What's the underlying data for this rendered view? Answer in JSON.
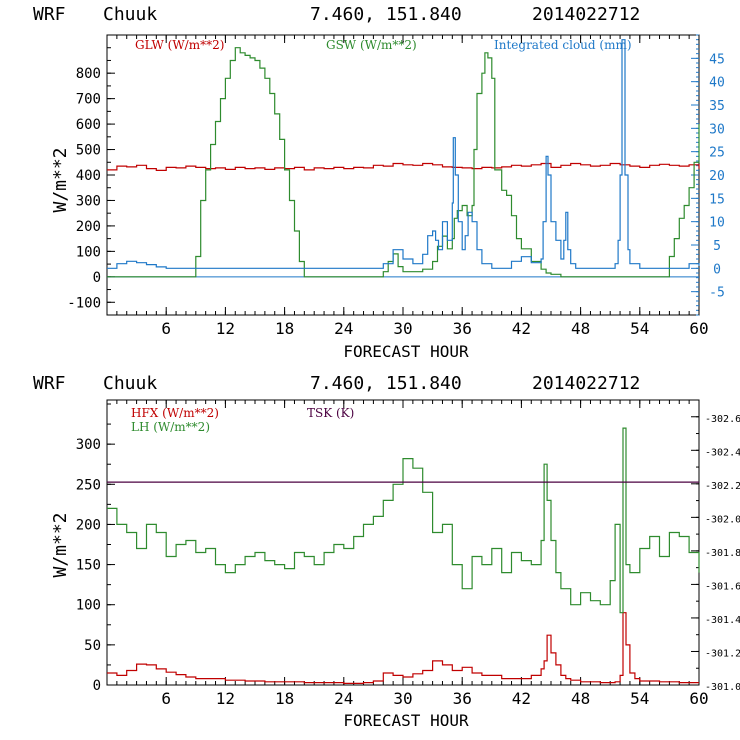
{
  "colors": {
    "glw": "#c00000",
    "gsw": "#2e8b2e",
    "cloud": "#1e78c8",
    "hfx": "#c00000",
    "lh": "#2e8b2e",
    "tsk": "#4b0040",
    "axis": "#000000",
    "right_axis_top": "#1e78c8"
  },
  "chart_data": [
    {
      "type": "line",
      "header": {
        "model": "WRF",
        "site": "Chuuk",
        "coords": "7.460, 151.840",
        "run": "2014022712"
      },
      "title": "WRF  Chuuk   7.460, 151.840  2014022712",
      "xlabel": "FORECAST HOUR",
      "ylabel": "W/m**2",
      "xlim": [
        0,
        60
      ],
      "xticks": [
        6,
        12,
        18,
        24,
        30,
        36,
        42,
        48,
        54,
        60
      ],
      "xtick_labels": [
        "6",
        "12",
        "18",
        "24",
        "30",
        "36",
        "42",
        "48",
        "54",
        "60"
      ],
      "ylim": [
        -150,
        950
      ],
      "yticks": [
        -100,
        0,
        100,
        200,
        300,
        400,
        500,
        600,
        700,
        800
      ],
      "ytick_labels": [
        "-100",
        "0",
        "100",
        "200",
        "300",
        "400",
        "500",
        "600",
        "700",
        "800"
      ],
      "y2lim": [
        -10,
        50
      ],
      "y2ticks": [
        -5,
        0,
        5,
        10,
        15,
        20,
        25,
        30,
        35,
        40,
        45
      ],
      "y2tick_labels": [
        "-5",
        "0",
        "5",
        "10",
        "15",
        "20",
        "25",
        "30",
        "35",
        "40",
        "45"
      ],
      "legend": {
        "glw": "GLW (W/m**2)",
        "gsw": "GSW (W/m**2)",
        "cloud": "Integrated cloud (mm)"
      },
      "series": [
        {
          "name": "GLW (W/m**2)",
          "axis": "left",
          "color_key": "glw",
          "x": [
            0,
            1,
            2,
            3,
            4,
            5,
            6,
            7,
            8,
            9,
            10,
            11,
            12,
            13,
            14,
            15,
            16,
            17,
            18,
            19,
            20,
            21,
            22,
            23,
            24,
            25,
            26,
            27,
            28,
            29,
            30,
            31,
            32,
            33,
            34,
            35,
            36,
            37,
            38,
            39,
            40,
            41,
            42,
            43,
            44,
            45,
            46,
            47,
            48,
            49,
            50,
            51,
            52,
            53,
            54,
            55,
            56,
            57,
            58,
            59,
            60
          ],
          "y": [
            420,
            435,
            432,
            438,
            425,
            418,
            430,
            428,
            435,
            430,
            425,
            428,
            422,
            430,
            425,
            428,
            422,
            428,
            425,
            430,
            420,
            428,
            425,
            430,
            425,
            430,
            428,
            438,
            435,
            445,
            440,
            438,
            445,
            440,
            432,
            430,
            428,
            425,
            430,
            428,
            432,
            438,
            435,
            440,
            445,
            430,
            438,
            445,
            440,
            435,
            438,
            445,
            440,
            435,
            430,
            438,
            442,
            438,
            435,
            440,
            425
          ]
        },
        {
          "name": "GSW (W/m**2)",
          "axis": "left",
          "color_key": "gsw",
          "x": [
            0,
            8,
            9,
            9.5,
            10,
            10.5,
            11,
            11.5,
            12,
            12.5,
            13,
            13.5,
            14,
            14.5,
            15,
            15.5,
            16,
            16.5,
            17,
            17.5,
            18,
            18.5,
            19,
            19.5,
            20,
            20.5,
            27,
            28,
            28.5,
            29,
            29.5,
            30,
            32,
            33,
            33.5,
            34,
            34.5,
            35,
            35.2,
            35.5,
            36,
            36.5,
            37,
            37.2,
            37.5,
            38,
            38.3,
            38.6,
            39,
            39.3,
            40,
            40.5,
            41,
            41.5,
            42,
            43,
            44,
            44.5,
            45,
            46,
            47,
            48,
            50,
            52,
            54,
            55,
            56,
            57,
            57.5,
            58,
            58.5,
            59,
            59.5,
            60
          ],
          "y": [
            0,
            0,
            80,
            300,
            420,
            520,
            610,
            700,
            780,
            850,
            900,
            880,
            870,
            860,
            850,
            820,
            780,
            720,
            640,
            540,
            420,
            300,
            180,
            60,
            0,
            0,
            0,
            20,
            60,
            90,
            40,
            20,
            30,
            60,
            120,
            160,
            110,
            150,
            230,
            260,
            280,
            240,
            280,
            500,
            720,
            800,
            880,
            860,
            780,
            420,
            340,
            320,
            240,
            150,
            110,
            60,
            30,
            15,
            10,
            0,
            0,
            0,
            0,
            0,
            0,
            0,
            0,
            80,
            150,
            230,
            280,
            350,
            450,
            600
          ]
        },
        {
          "name": "Integrated cloud (mm)",
          "axis": "right",
          "color_key": "cloud",
          "x": [
            0,
            1,
            2,
            3,
            4,
            5,
            6,
            7,
            8,
            10,
            12,
            14,
            16,
            18,
            20,
            22,
            24,
            26,
            27.5,
            28,
            29,
            30,
            31,
            32,
            32.5,
            33,
            33.3,
            33.6,
            34,
            34.5,
            35,
            35.1,
            35.3,
            35.6,
            36,
            36.3,
            36.6,
            37,
            37.5,
            38,
            39,
            40,
            41,
            42,
            43,
            44,
            44.2,
            44.5,
            44.7,
            45,
            45.5,
            46,
            46.3,
            46.5,
            46.7,
            47,
            47.5,
            48,
            49,
            50,
            51,
            51.5,
            51.8,
            52,
            52.2,
            52.5,
            52.8,
            53,
            54,
            56,
            58,
            59,
            60
          ],
          "y": [
            0,
            1,
            1.5,
            1.2,
            0.8,
            0.3,
            0,
            0,
            0,
            0,
            0,
            0,
            0,
            0,
            0,
            0,
            0,
            0,
            0,
            1,
            4,
            2,
            1,
            3,
            7,
            8,
            6,
            4,
            10,
            6,
            14,
            28,
            20,
            10,
            4,
            7,
            12,
            10,
            4,
            1,
            0,
            0,
            1.5,
            2.5,
            1.2,
            2,
            10,
            24,
            20,
            10,
            6,
            2,
            6,
            12,
            4,
            1,
            0,
            0,
            0,
            0,
            0,
            1,
            6,
            20,
            49,
            20,
            4,
            1,
            0,
            0,
            0,
            1,
            0.5
          ]
        }
      ]
    },
    {
      "type": "line",
      "header": {
        "model": "WRF",
        "site": "Chuuk",
        "coords": "7.460, 151.840",
        "run": "2014022712"
      },
      "title": "WRF  Chuuk   7.460, 151.840  2014022712",
      "xlabel": "FORECAST HOUR",
      "ylabel": "W/m**2",
      "xlim": [
        0,
        60
      ],
      "xticks": [
        6,
        12,
        18,
        24,
        30,
        36,
        42,
        48,
        54,
        60
      ],
      "xtick_labels": [
        "6",
        "12",
        "18",
        "24",
        "30",
        "36",
        "42",
        "48",
        "54",
        "60"
      ],
      "ylim": [
        0,
        355
      ],
      "yticks": [
        0,
        50,
        100,
        150,
        200,
        250,
        300
      ],
      "ytick_labels": [
        "0",
        "50",
        "100",
        "150",
        "200",
        "250",
        "300"
      ],
      "y2lim": [
        301.0,
        302.7
      ],
      "y2ticks": [
        301.0,
        301.2,
        301.4,
        301.6,
        301.8,
        302.0,
        302.2,
        302.4,
        302.6
      ],
      "y2tick_labels": [
        "301.0",
        "301.2",
        "301.4",
        "301.6",
        "301.8",
        "302.0",
        "302.2",
        "302.4",
        "302.6"
      ],
      "legend": {
        "hfx": "HFX (W/m**2)",
        "lh": "LH  (W/m**2)",
        "tsk": "TSK (K)"
      },
      "series": [
        {
          "name": "HFX (W/m**2)",
          "axis": "left",
          "color_key": "hfx",
          "x": [
            0,
            1,
            2,
            3,
            4,
            5,
            6,
            7,
            8,
            9,
            10,
            12,
            14,
            16,
            18,
            20,
            22,
            24,
            26,
            27,
            28,
            29,
            30,
            31,
            32,
            33,
            34,
            35,
            36,
            37,
            38,
            40,
            42,
            43,
            44,
            44.3,
            44.6,
            45,
            45.5,
            46,
            46.5,
            47,
            48,
            50,
            51,
            51.5,
            52,
            52.3,
            52.6,
            53,
            53.5,
            54,
            56,
            58,
            60
          ],
          "y": [
            15,
            12,
            18,
            26,
            25,
            20,
            16,
            13,
            10,
            8,
            8,
            6,
            5,
            4,
            4,
            3,
            3,
            2,
            3,
            5,
            15,
            12,
            10,
            14,
            18,
            30,
            25,
            18,
            22,
            15,
            12,
            8,
            8,
            12,
            20,
            30,
            62,
            40,
            25,
            12,
            8,
            6,
            4,
            3,
            3,
            4,
            12,
            90,
            50,
            15,
            8,
            5,
            4,
            3,
            3
          ]
        },
        {
          "name": "LH  (W/m**2)",
          "axis": "left",
          "color_key": "lh",
          "x": [
            0,
            1,
            2,
            3,
            4,
            5,
            6,
            7,
            8,
            9,
            10,
            11,
            12,
            13,
            14,
            15,
            16,
            17,
            18,
            19,
            20,
            21,
            22,
            23,
            24,
            25,
            26,
            27,
            28,
            29,
            30,
            31,
            32,
            33,
            34,
            35,
            36,
            37,
            38,
            39,
            40,
            41,
            42,
            43,
            44,
            44.3,
            44.6,
            45,
            45.5,
            46,
            47,
            48,
            49,
            50,
            51,
            51.5,
            52,
            52.3,
            52.6,
            53,
            54,
            55,
            56,
            57,
            58,
            59,
            60
          ],
          "y": [
            220,
            200,
            190,
            170,
            200,
            190,
            160,
            175,
            180,
            165,
            170,
            150,
            140,
            150,
            160,
            165,
            155,
            150,
            145,
            165,
            160,
            150,
            165,
            175,
            170,
            185,
            200,
            210,
            230,
            250,
            282,
            270,
            240,
            190,
            200,
            150,
            120,
            160,
            150,
            170,
            140,
            165,
            155,
            150,
            180,
            275,
            230,
            180,
            140,
            120,
            100,
            115,
            105,
            100,
            130,
            200,
            90,
            320,
            150,
            140,
            170,
            185,
            160,
            190,
            185,
            165,
            140
          ]
        },
        {
          "name": "TSK (K)",
          "axis": "right",
          "color_key": "tsk",
          "x": [
            0,
            60
          ],
          "y": [
            302.21,
            302.21
          ]
        }
      ]
    }
  ]
}
